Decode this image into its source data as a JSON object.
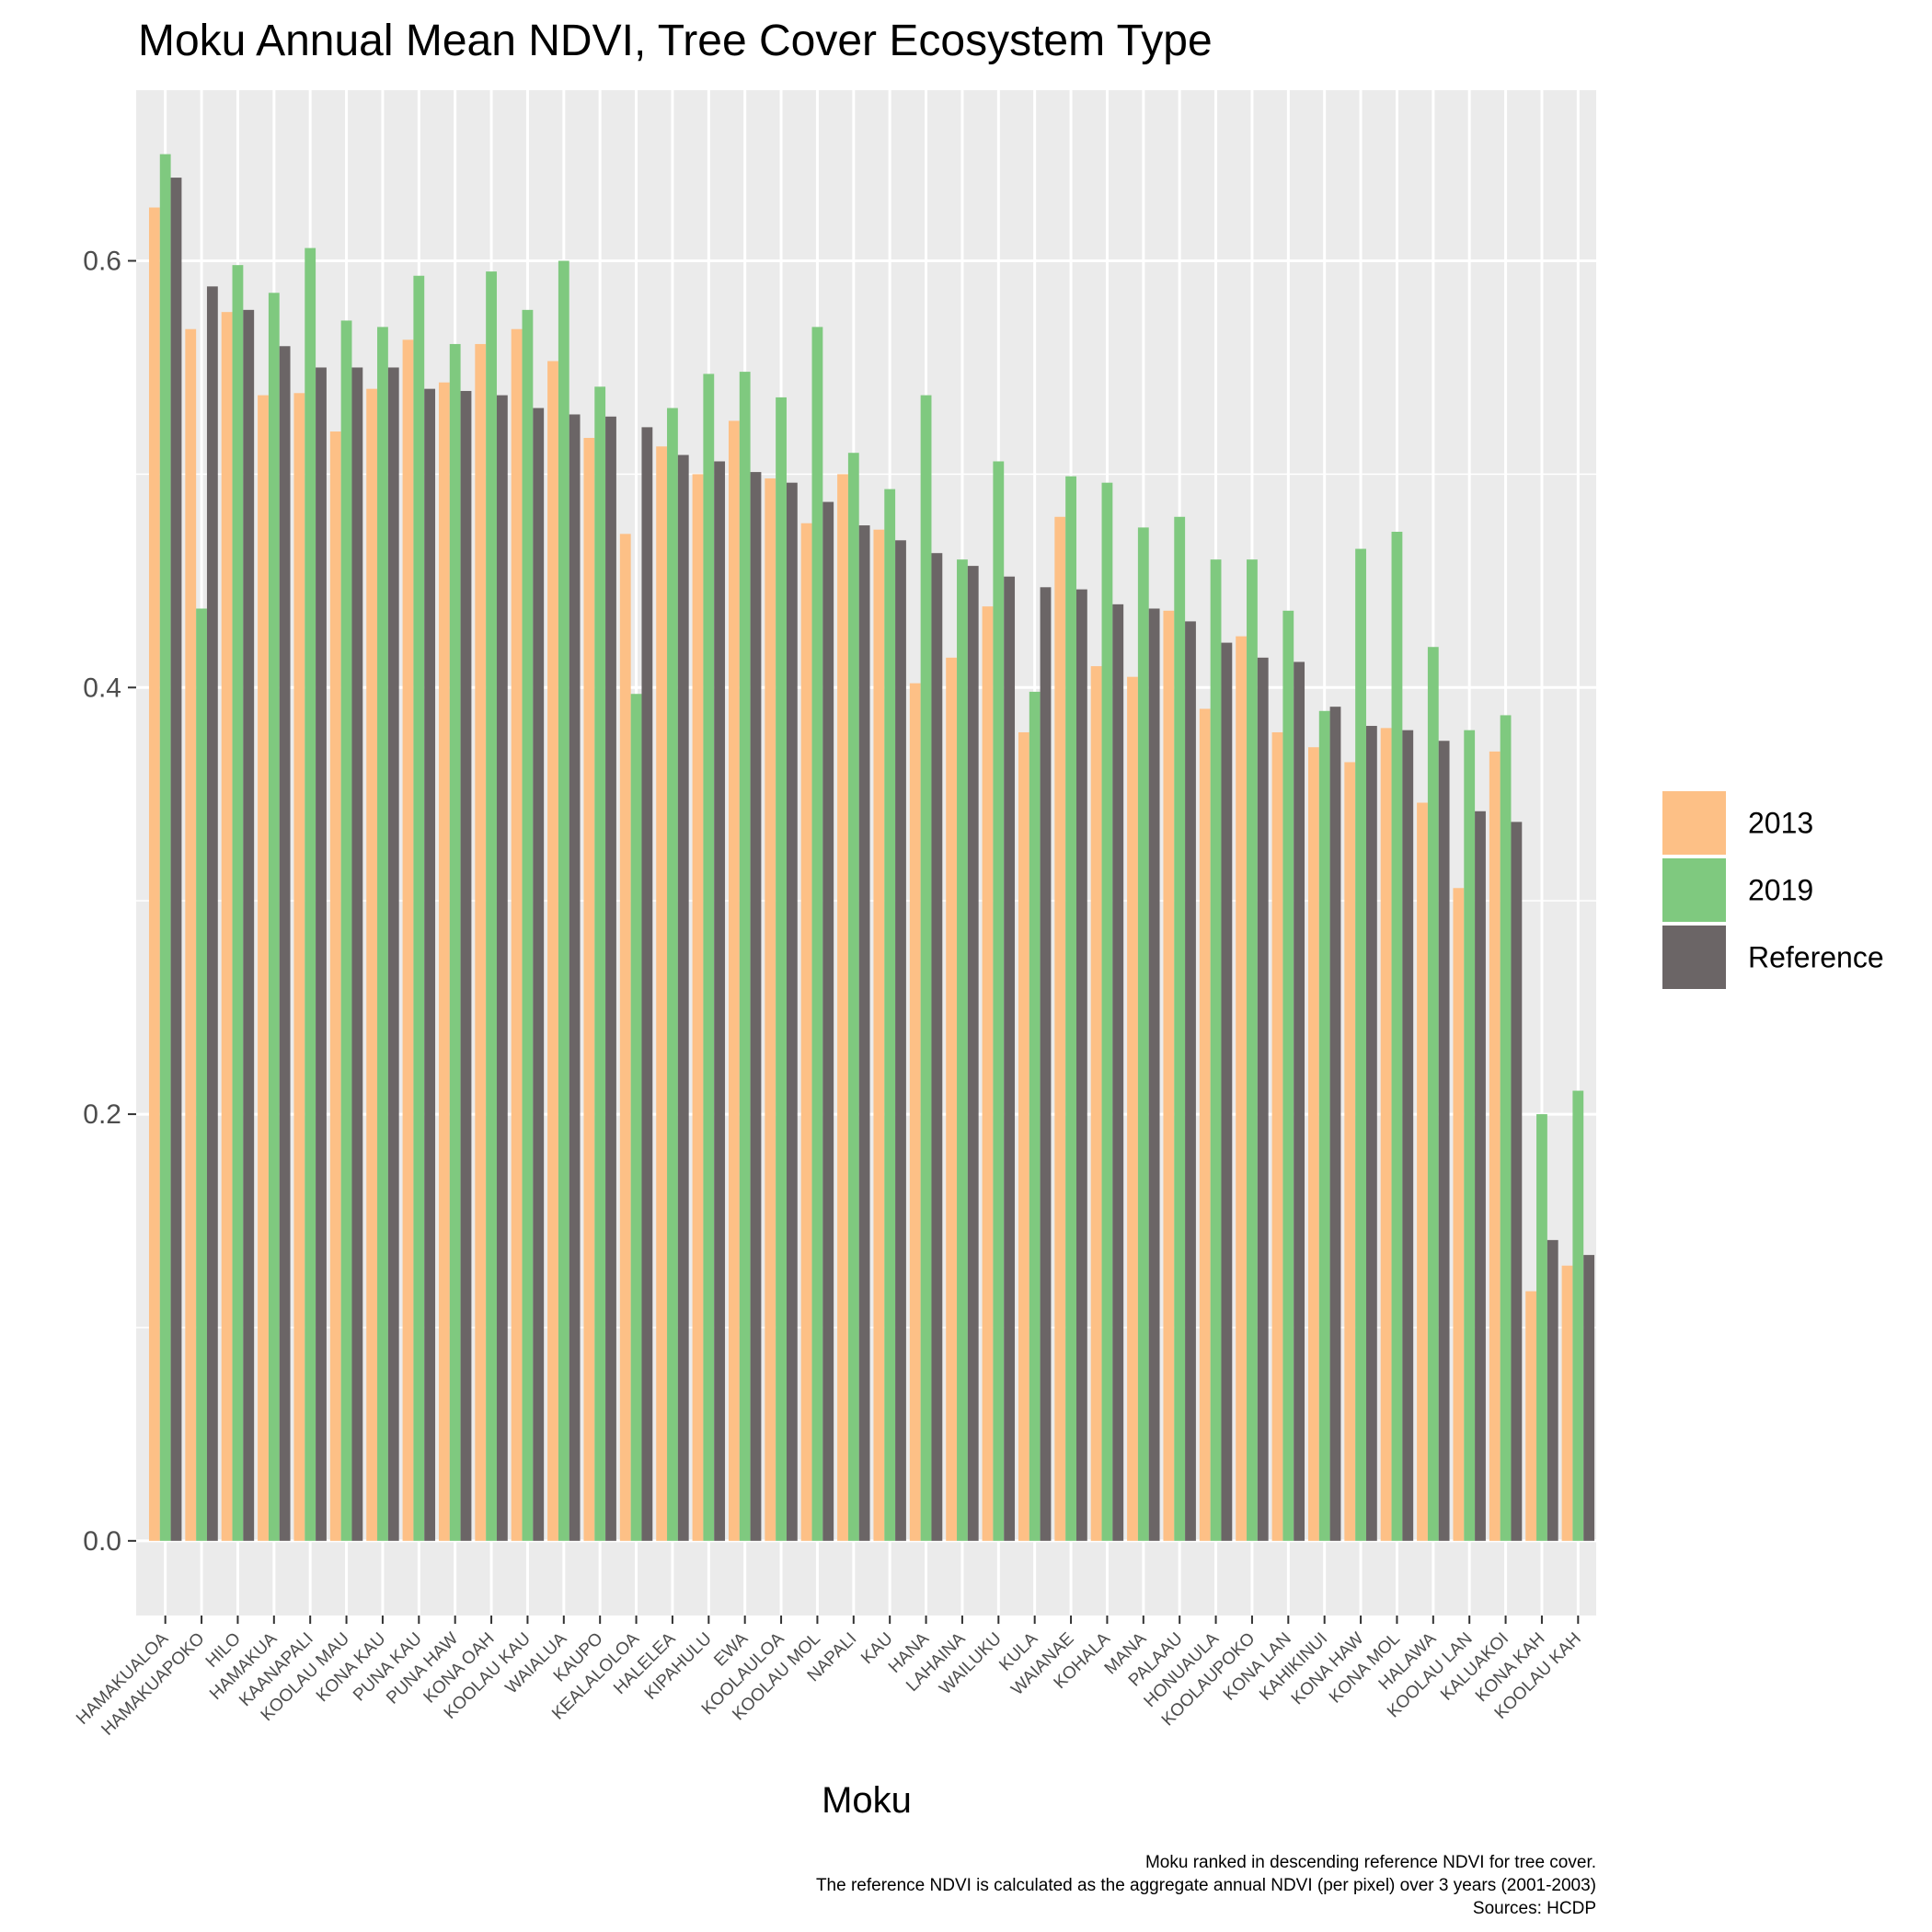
{
  "chart_data": {
    "type": "bar",
    "title": "Moku Annual Mean NDVI, Tree Cover Ecosystem Type",
    "xlabel": "Moku",
    "ylabel": "",
    "ylim": [
      -0.035,
      0.68
    ],
    "yticks": [
      0.0,
      0.2,
      0.4,
      0.6
    ],
    "ytick_labels": [
      "0.0",
      "0.2",
      "0.4",
      "0.6"
    ],
    "grid": true,
    "legend_position": "right",
    "categories": [
      "HAMAKUALOA",
      "HAMAKUAPOKO",
      "HILO",
      "HAMAKUA",
      "KAANAPALI",
      "KOOLAU MAU",
      "KONA KAU",
      "PUNA KAU",
      "PUNA HAW",
      "KONA OAH",
      "KOOLAU KAU",
      "WAIALUA",
      "KAUPO",
      "KEALALOLOA",
      "HALELEA",
      "KIPAHULU",
      "EWA",
      "KOOLAULOA",
      "KOOLAU MOL",
      "NAPALI",
      "KAU",
      "HANA",
      "LAHAINA",
      "WAILUKU",
      "KULA",
      "WAIANAE",
      "KOHALA",
      "MANA",
      "PALAAU",
      "HONUAULA",
      "KOOLAUPOKO",
      "KONA LAN",
      "KAHIKINUI",
      "KONA HAW",
      "KONA MOL",
      "HALAWA",
      "KOOLAU LAN",
      "KALUAKOI",
      "KONA KAH",
      "KOOLAU KAH"
    ],
    "series": [
      {
        "name": "2013",
        "color": "#fdc086",
        "values": [
          0.625,
          0.568,
          0.576,
          0.537,
          0.538,
          0.52,
          0.54,
          0.563,
          0.543,
          0.561,
          0.568,
          0.553,
          0.517,
          0.472,
          0.513,
          0.5,
          0.525,
          0.498,
          0.477,
          0.5,
          0.474,
          0.402,
          0.414,
          0.438,
          0.379,
          0.48,
          0.41,
          0.405,
          0.436,
          0.39,
          0.424,
          0.379,
          0.372,
          0.365,
          0.381,
          0.346,
          0.306,
          0.37,
          0.117,
          0.129
        ]
      },
      {
        "name": "2019",
        "color": "#7fc97f",
        "values": [
          0.65,
          0.437,
          0.598,
          0.585,
          0.606,
          0.572,
          0.569,
          0.593,
          0.561,
          0.595,
          0.577,
          0.6,
          0.541,
          0.397,
          0.531,
          0.547,
          0.548,
          0.536,
          0.569,
          0.51,
          0.493,
          0.537,
          0.46,
          0.506,
          0.398,
          0.499,
          0.496,
          0.475,
          0.48,
          0.46,
          0.46,
          0.436,
          0.389,
          0.465,
          0.473,
          0.419,
          0.38,
          0.387,
          0.2,
          0.211
        ]
      },
      {
        "name": "Reference",
        "color": "#6b6566",
        "values": [
          0.639,
          0.588,
          0.577,
          0.56,
          0.55,
          0.55,
          0.55,
          0.54,
          0.539,
          0.537,
          0.531,
          0.528,
          0.527,
          0.522,
          0.509,
          0.506,
          0.501,
          0.496,
          0.487,
          0.476,
          0.469,
          0.463,
          0.457,
          0.452,
          0.447,
          0.446,
          0.439,
          0.437,
          0.431,
          0.421,
          0.414,
          0.412,
          0.391,
          0.382,
          0.38,
          0.375,
          0.342,
          0.337,
          0.141,
          0.134
        ]
      }
    ],
    "caption_lines": [
      "Moku ranked in descending reference NDVI for tree cover.",
      "The reference NDVI is calculated as the aggregate annual NDVI (per pixel) over 3 years (2001-2003)",
      "Sources: HCDP"
    ]
  }
}
